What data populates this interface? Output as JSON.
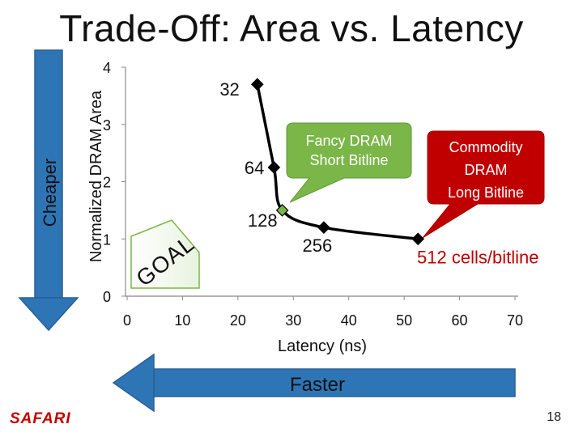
{
  "slide": {
    "title": "Trade-Off: Area vs. Latency",
    "logo": "SAFARI",
    "page_number": "18",
    "colors": {
      "arrow": "#2E75B6",
      "arrow_stroke": "#2A5F95",
      "callout_green": "#7AB648",
      "callout_red": "#C00000",
      "label_red": "#C00000"
    }
  },
  "arrows": {
    "vertical_label": "Cheaper",
    "horizontal_label": "Faster"
  },
  "chart_data": {
    "type": "line",
    "xlabel": "Latency (ns)",
    "ylabel": "Normalized DRAM Area",
    "xlim": [
      0,
      70
    ],
    "ylim": [
      0,
      4
    ],
    "x_ticks": [
      0,
      10,
      20,
      30,
      40,
      50,
      60,
      70
    ],
    "y_ticks": [
      0,
      1,
      2,
      3,
      4
    ],
    "grid": false,
    "series": [
      {
        "points": [
          {
            "label": "32",
            "x": 23.5,
            "y": 3.7
          },
          {
            "label": "64",
            "x": 26.5,
            "y": 2.25
          },
          {
            "label": "128",
            "x": 28.0,
            "y": 1.5
          },
          {
            "label": "256",
            "x": 35.5,
            "y": 1.2
          },
          {
            "label": "512 cells/bitline",
            "x": 52.5,
            "y": 1.0
          }
        ]
      }
    ],
    "annotations": {
      "callout_fancy_line1": "Fancy DRAM",
      "callout_fancy_line2": "Short Bitline",
      "callout_commodity_line1": "Commodity",
      "callout_commodity_line2": "DRAM",
      "callout_commodity_line3": "Long Bitline",
      "goal_label": "GOAL"
    }
  }
}
